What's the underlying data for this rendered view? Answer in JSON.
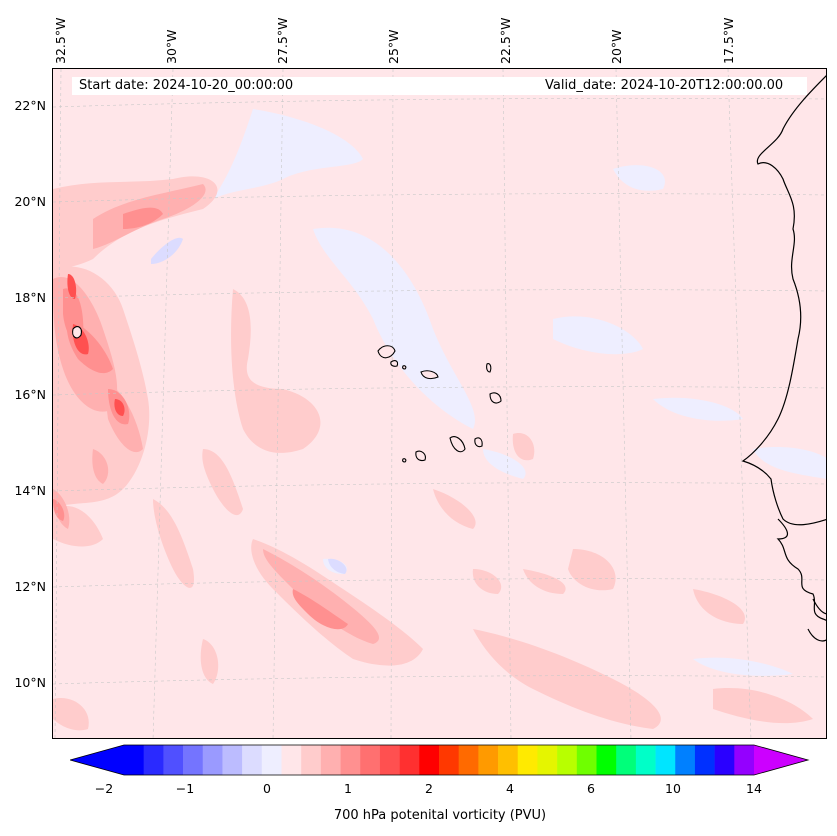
{
  "map": {
    "start_label": "Start date: 2024-10-20_00:00:00",
    "valid_label": "Valid_date: 2024-10-20T12:00:00.00",
    "lon_labels": [
      "32.5°W",
      "30°W",
      "27.5°W",
      "25°W",
      "22.5°W",
      "20°W",
      "17.5°W"
    ],
    "lat_labels": [
      "22°N",
      "20°N",
      "18°N",
      "16°N",
      "14°N",
      "12°N",
      "10°N"
    ],
    "land_outline_color": "#000000",
    "gridline_color": "#c8c8c8"
  },
  "colorbar": {
    "title": "700 hPa potenital vorticity (PVU)",
    "tick_labels": [
      "−2",
      "−1",
      "0",
      "1",
      "2",
      "4",
      "6",
      "10",
      "14"
    ],
    "extend": "both",
    "colors": [
      "#0000ff",
      "#2a2aff",
      "#5050ff",
      "#7474ff",
      "#9a9aff",
      "#bcbcff",
      "#dcdcff",
      "#eeeeff",
      "#ffe6e9",
      "#ffcccc",
      "#ffb0b0",
      "#ff9090",
      "#ff7070",
      "#ff5050",
      "#ff3030",
      "#ff0000",
      "#ff3800",
      "#ff6a00",
      "#ff9a00",
      "#ffbf00",
      "#ffea00",
      "#e5f500",
      "#b8ff00",
      "#6fff00",
      "#00ff00",
      "#00ff7a",
      "#00ffc8",
      "#00e5ff",
      "#0080ff",
      "#0030ff",
      "#2a00ff",
      "#9400ff"
    ],
    "under_color": "#0000ff",
    "over_color": "#cc00ff"
  }
}
